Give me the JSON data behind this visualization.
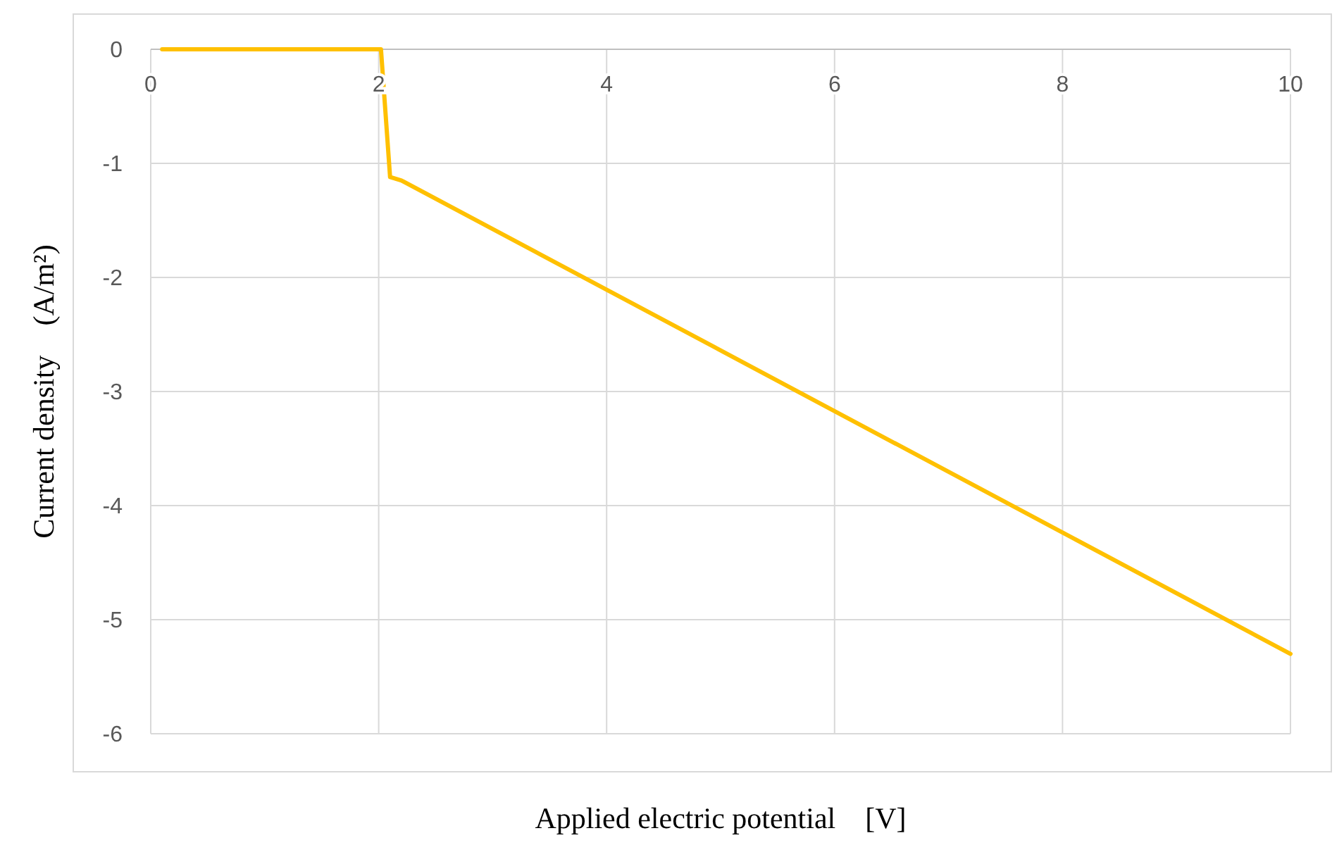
{
  "chart_data": {
    "type": "line",
    "xlabel": "Applied electric potential　[V]",
    "ylabel": "Current density　(A/m²)",
    "x": [
      0.1,
      1.95,
      2.02,
      2.1,
      2.2,
      10
    ],
    "series": [
      {
        "color": "#ffc000",
        "values": [
          0,
          0,
          0,
          -1.12,
          -1.15,
          -5.3
        ]
      }
    ],
    "xlim": [
      0,
      10
    ],
    "xticks": [
      0,
      2,
      4,
      6,
      8,
      10
    ],
    "ylim": [
      -6,
      0
    ],
    "yticks": [
      -6,
      -5,
      -4,
      -3,
      -2,
      -1,
      0
    ],
    "grid": true,
    "marker": "none",
    "line_style": "solid"
  }
}
